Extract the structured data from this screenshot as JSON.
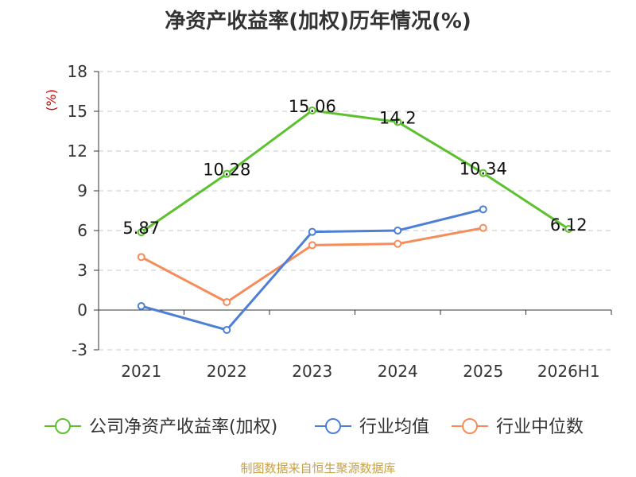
{
  "title": "净资产收益率(加权)历年情况(%)",
  "source": "制图数据来自恒生聚源数据库",
  "colors": {
    "roe": "#5cc12e",
    "industry_avg": "#4d7fd6",
    "industry_median": "#f68c5a"
  },
  "chart_data": {
    "type": "line",
    "title": "净资产收益率(加权)历年情况(%)",
    "xlabel": "",
    "ylabel": "(%)",
    "categories": [
      "2021",
      "2022",
      "2023",
      "2024",
      "2025",
      "2026H1"
    ],
    "ylim": [
      -3,
      18
    ],
    "yticks": [
      -3,
      0,
      3,
      6,
      9,
      12,
      15,
      18
    ],
    "grid": true,
    "legend_position": "bottom",
    "series": [
      {
        "name": "公司净资产收益率(加权)",
        "values": [
          5.87,
          10.28,
          15.06,
          14.2,
          10.34,
          6.12
        ],
        "labels": [
          "5.87",
          "10.28",
          "15.06",
          "14.2",
          "10.34",
          "6.12"
        ]
      },
      {
        "name": "行业均值",
        "values": [
          0.3,
          -1.5,
          5.9,
          6.0,
          7.6,
          null
        ]
      },
      {
        "name": "行业中位数",
        "values": [
          4.0,
          0.6,
          4.9,
          5.0,
          6.2,
          null
        ]
      }
    ]
  }
}
